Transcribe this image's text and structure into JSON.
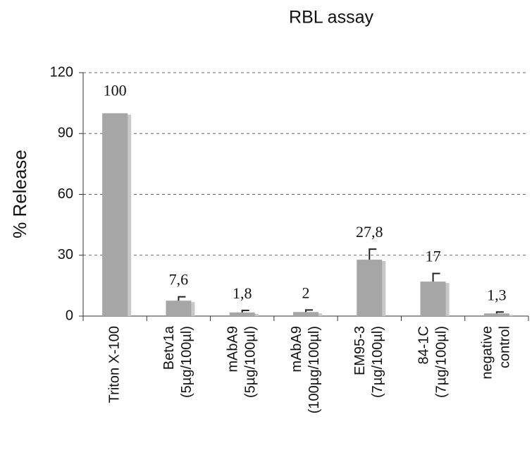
{
  "chart_data": {
    "type": "bar",
    "title": "RBL assay",
    "ylabel": "% Release",
    "categories": [
      [
        "Triton X-100"
      ],
      [
        "Betv1a",
        "(5µg/100µl)"
      ],
      [
        "mAbA9",
        "(5µg/100µl)"
      ],
      [
        "mAbA9",
        "(100µg/100µl)"
      ],
      [
        "EM95-3",
        "(7µg/100µl)"
      ],
      [
        "84-1C",
        "(7µg/100µl)"
      ],
      [
        "negative",
        "control"
      ]
    ],
    "values": [
      100,
      7.6,
      1.8,
      2,
      27.8,
      17,
      1.3
    ],
    "value_labels": [
      "100",
      "7,6",
      "1,8",
      "2",
      "27,8",
      "17",
      "1,3"
    ],
    "errors": [
      null,
      1.9,
      1,
      1,
      5.2,
      4,
      0.7
    ],
    "color": "#a6a6a6",
    "shadow_color": "#c8c8c8",
    "ylim": [
      0,
      120
    ],
    "yticks": [
      0,
      30,
      60,
      90,
      120
    ],
    "grid": true
  }
}
